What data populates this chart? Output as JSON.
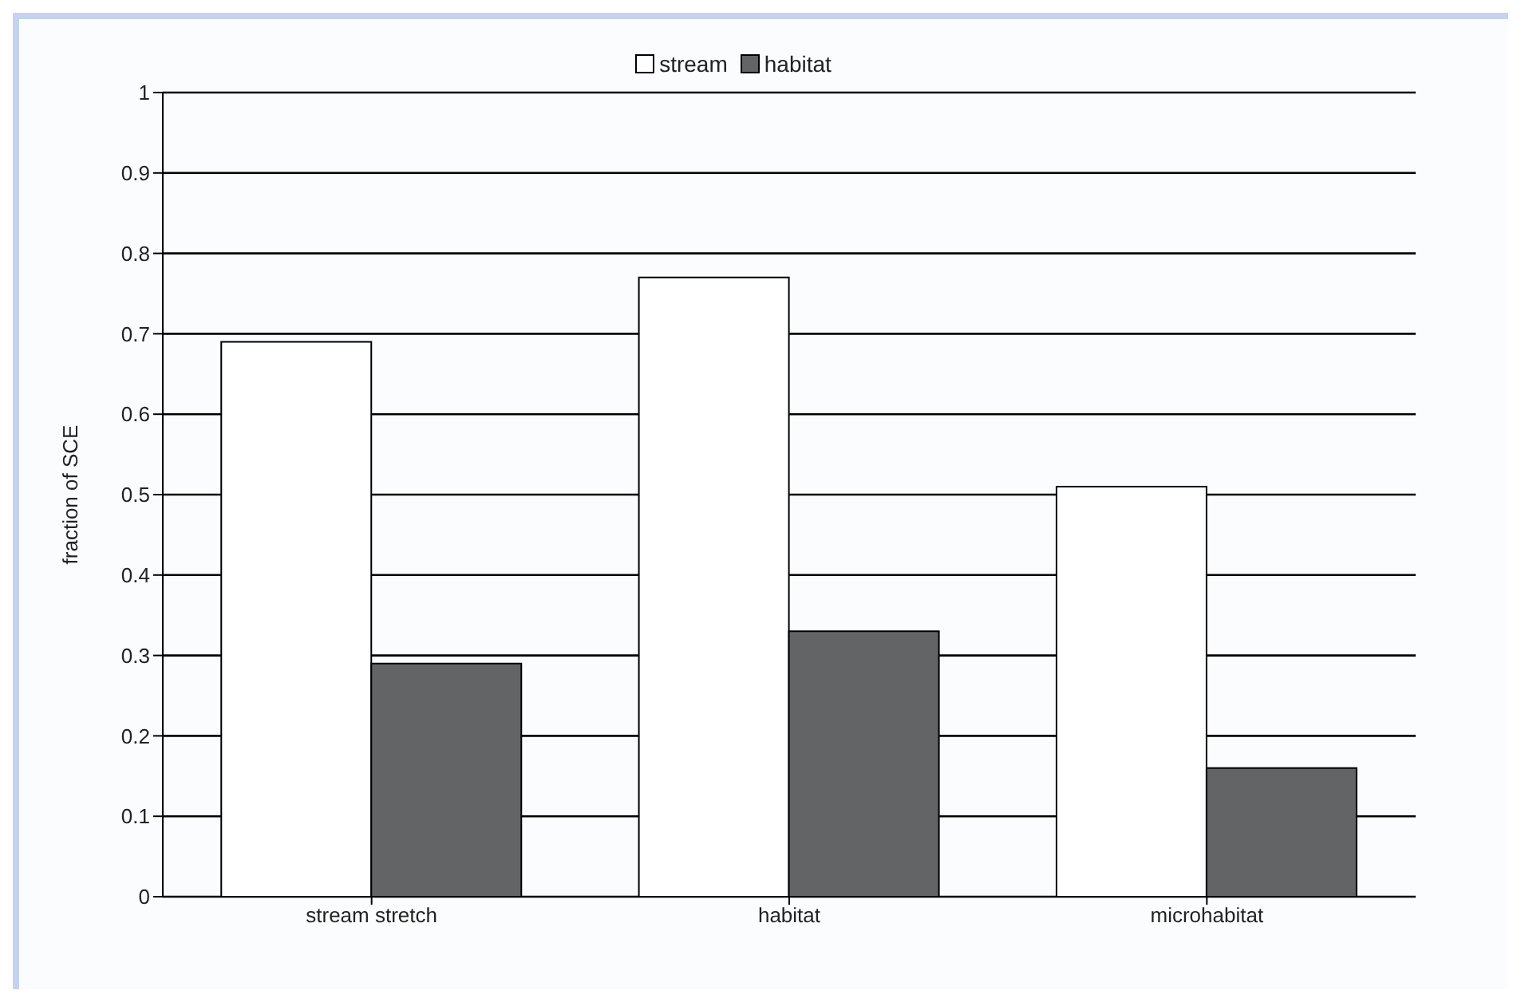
{
  "chart_data": {
    "type": "bar",
    "ylabel": "fraction of SCE",
    "categories": [
      "stream stretch",
      "habitat",
      "microhabitat"
    ],
    "series": [
      {
        "name": "stream",
        "color": "#ffffff",
        "values": [
          0.69,
          0.77,
          0.51
        ]
      },
      {
        "name": "habitat",
        "color": "#636466",
        "values": [
          0.29,
          0.33,
          0.16
        ]
      }
    ],
    "ylim": [
      0,
      1
    ],
    "yticks": [
      0,
      0.1,
      0.2,
      0.3,
      0.4,
      0.5,
      0.6,
      0.7,
      0.8,
      0.9,
      1
    ],
    "grid": "y",
    "legend": "top"
  }
}
